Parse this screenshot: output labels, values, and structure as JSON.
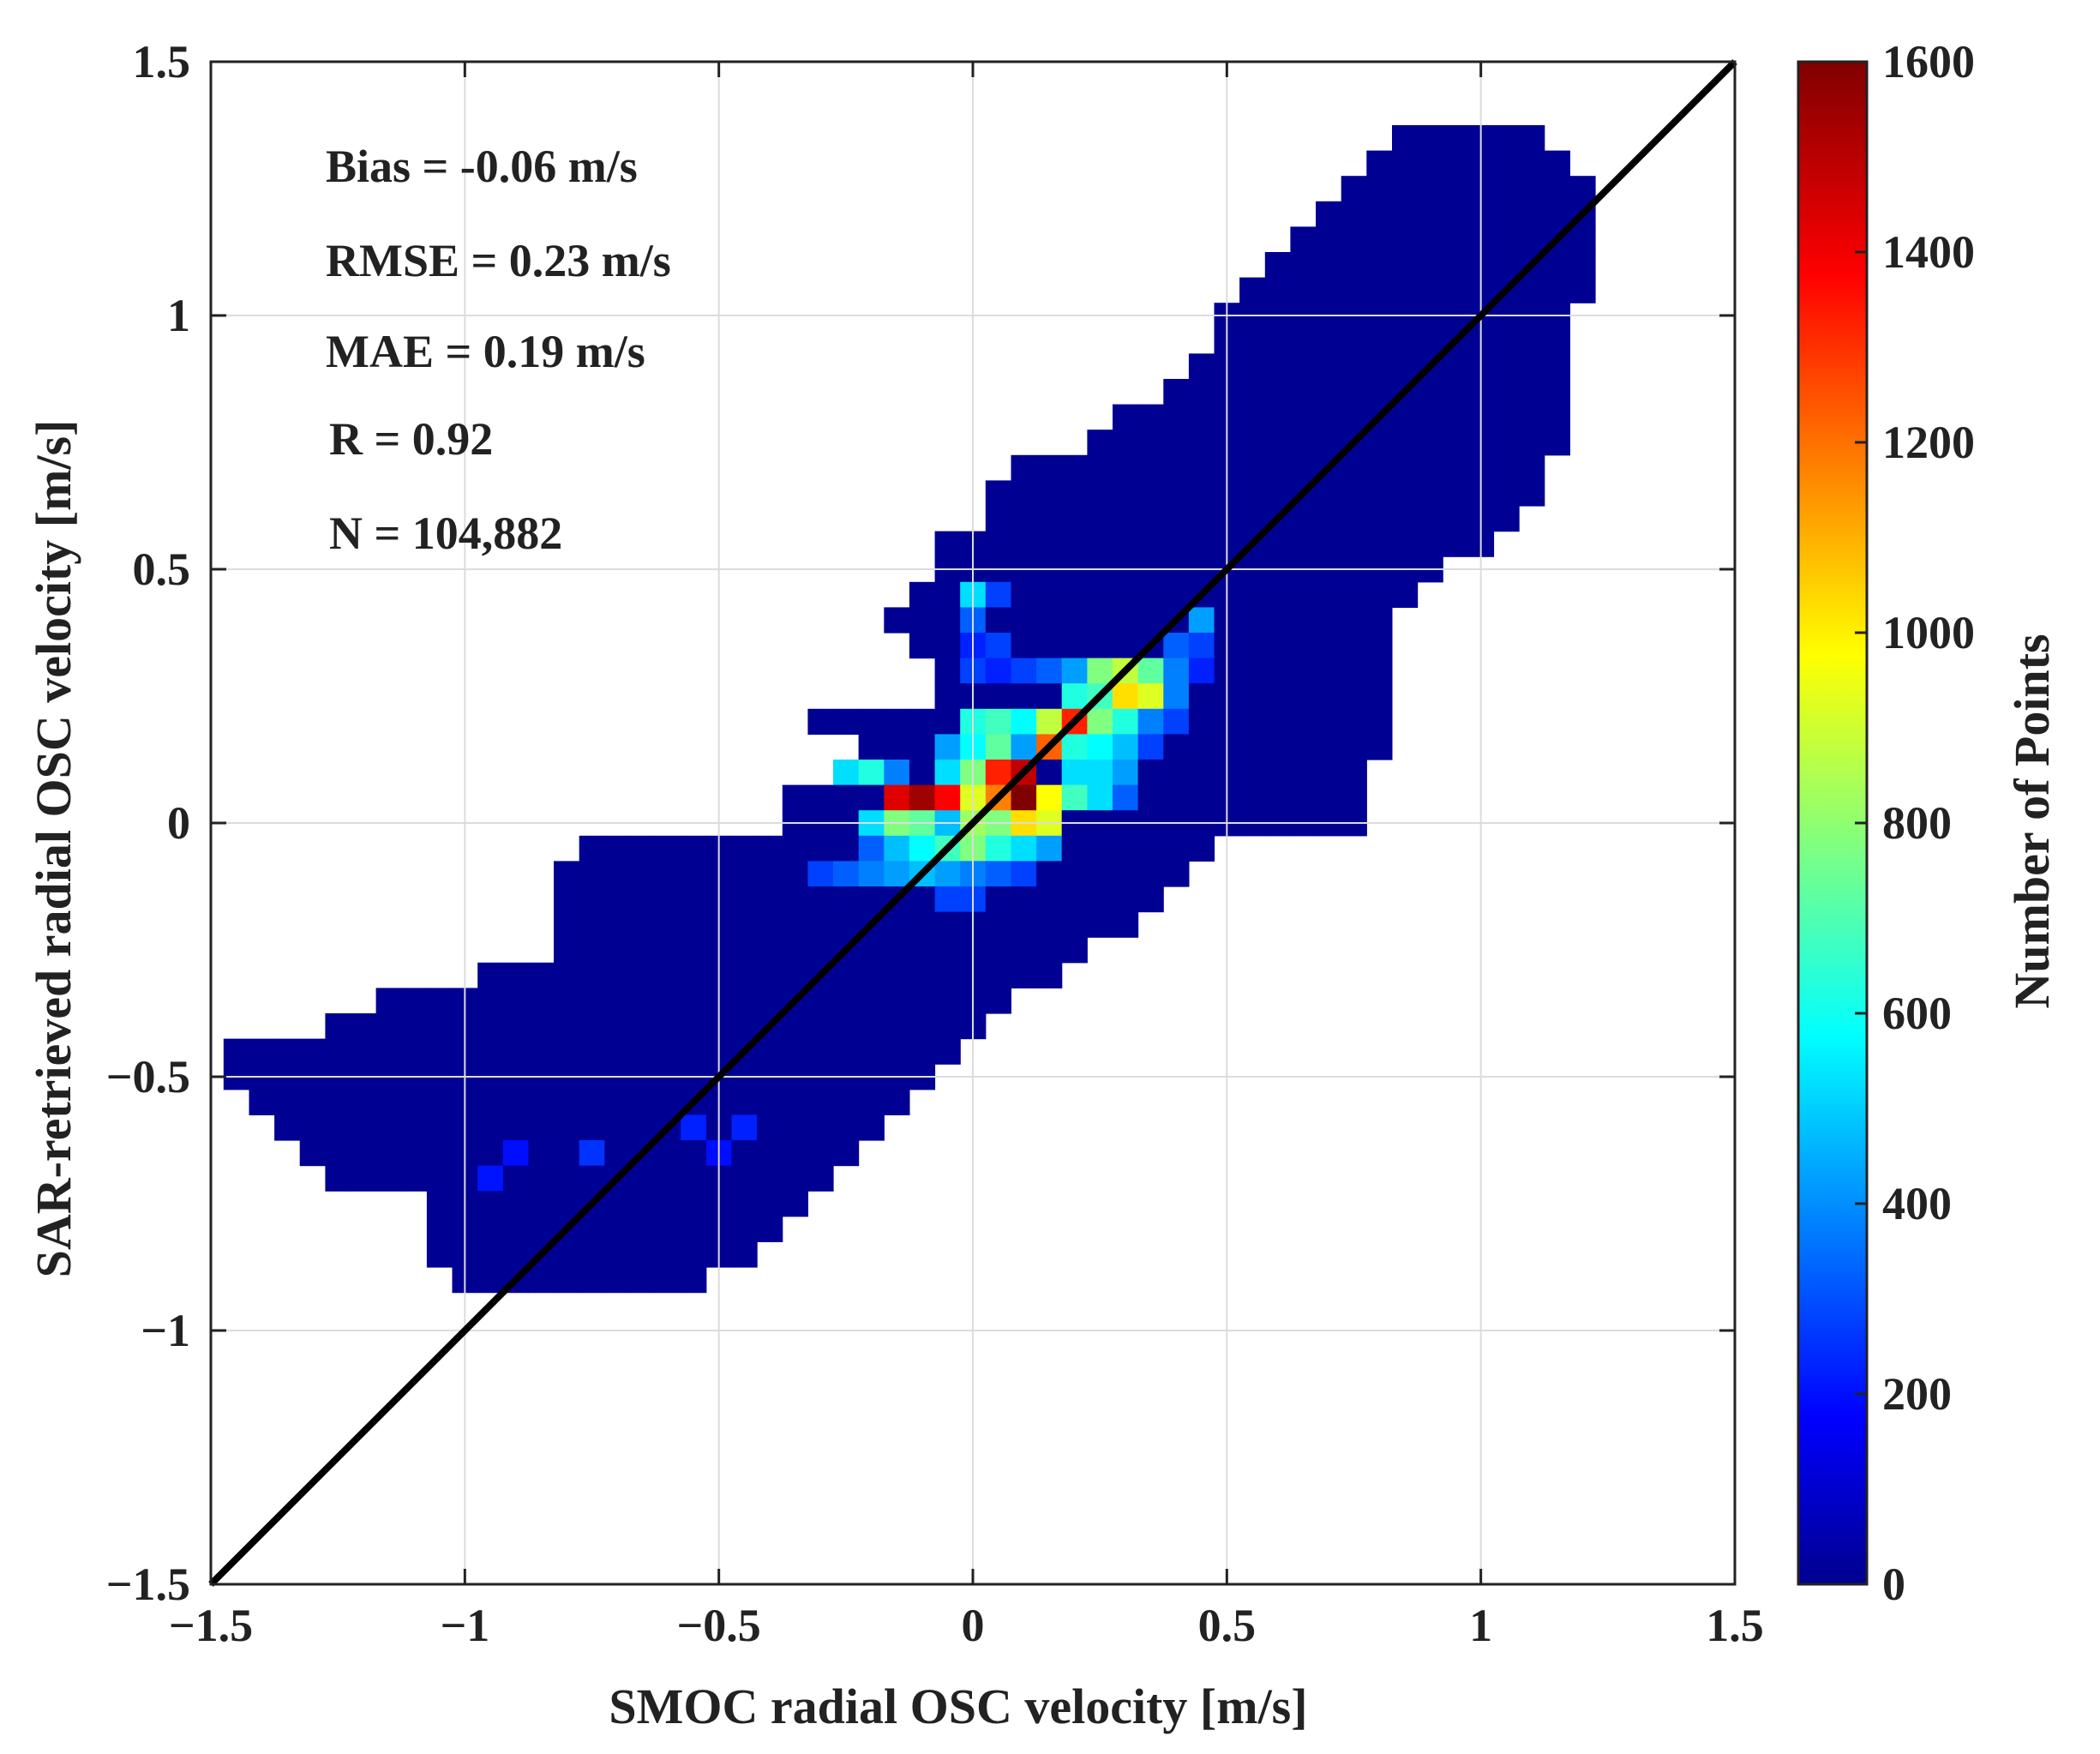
{
  "chart_data": {
    "type": "heatmap",
    "title": "",
    "xlabel": "SMOC radial OSC velocity [m/s]",
    "ylabel": "SAR-retrieved radial OSC velocity [m/s]",
    "xlim": [
      -1.5,
      1.5
    ],
    "ylim": [
      -1.5,
      1.5
    ],
    "xticks": [
      {
        "value": -1.5,
        "label": "−1.5"
      },
      {
        "value": -1,
        "label": "−1"
      },
      {
        "value": -0.5,
        "label": "−0.5"
      },
      {
        "value": 0,
        "label": "0"
      },
      {
        "value": 0.5,
        "label": "0.5"
      },
      {
        "value": 1,
        "label": "1"
      },
      {
        "value": 1.5,
        "label": "1.5"
      }
    ],
    "yticks": [
      {
        "value": -1.5,
        "label": "−1.5"
      },
      {
        "value": -1,
        "label": "−1"
      },
      {
        "value": -0.5,
        "label": "−0.5"
      },
      {
        "value": 0,
        "label": "0"
      },
      {
        "value": 0.5,
        "label": "0.5"
      },
      {
        "value": 1,
        "label": "1"
      },
      {
        "value": 1.5,
        "label": "1.5"
      }
    ],
    "grid": true,
    "bin_size": 0.05,
    "colormap": "jet",
    "colorbar": {
      "label": "Number of Points",
      "range": [
        0,
        1600
      ],
      "ticks": [
        {
          "value": 0,
          "label": "0"
        },
        {
          "value": 200,
          "label": "200"
        },
        {
          "value": 400,
          "label": "400"
        },
        {
          "value": 600,
          "label": "600"
        },
        {
          "value": 800,
          "label": "800"
        },
        {
          "value": 1000,
          "label": "1000"
        },
        {
          "value": 1200,
          "label": "1200"
        },
        {
          "value": 1400,
          "label": "1400"
        },
        {
          "value": 1600,
          "label": "1600"
        }
      ]
    },
    "reference_line": {
      "label": "1:1 line",
      "from": [
        -1.5,
        -1.5
      ],
      "to": [
        1.5,
        1.5
      ]
    },
    "annotations": [
      "Bias = -0.06 m/s",
      "RMSE = 0.23 m/s",
      "MAE = 0.19 m/s",
      "R = 0.92",
      "N = 104,882"
    ],
    "background_count": 30,
    "density_row_extents": [
      {
        "y": 1.35,
        "x_from": 0.85,
        "x_to": 1.1
      },
      {
        "y": 1.3,
        "x_from": 0.8,
        "x_to": 1.15
      },
      {
        "y": 1.25,
        "x_from": 0.75,
        "x_to": 1.2
      },
      {
        "y": 1.2,
        "x_from": 0.7,
        "x_to": 1.2
      },
      {
        "y": 1.15,
        "x_from": 0.65,
        "x_to": 1.2
      },
      {
        "y": 1.1,
        "x_from": 0.6,
        "x_to": 1.2
      },
      {
        "y": 1.05,
        "x_from": 0.55,
        "x_to": 1.2
      },
      {
        "y": 1.0,
        "x_from": 0.5,
        "x_to": 1.15
      },
      {
        "y": 0.95,
        "x_from": 0.5,
        "x_to": 1.15
      },
      {
        "y": 0.9,
        "x_from": 0.45,
        "x_to": 1.15
      },
      {
        "y": 0.85,
        "x_from": 0.4,
        "x_to": 1.15
      },
      {
        "y": 0.8,
        "x_from": 0.3,
        "x_to": 1.15
      },
      {
        "y": 0.75,
        "x_from": 0.25,
        "x_to": 1.15
      },
      {
        "y": 0.7,
        "x_from": 0.1,
        "x_to": 1.1
      },
      {
        "y": 0.65,
        "x_from": 0.05,
        "x_to": 1.1
      },
      {
        "y": 0.6,
        "x_from": 0.05,
        "x_to": 1.05
      },
      {
        "y": 0.55,
        "x_from": -0.05,
        "x_to": 1.0
      },
      {
        "y": 0.5,
        "x_from": -0.05,
        "x_to": 0.9
      },
      {
        "y": 0.45,
        "x_from": -0.1,
        "x_to": 0.85
      },
      {
        "y": 0.4,
        "x_from": -0.15,
        "x_to": 0.8
      },
      {
        "y": 0.35,
        "x_from": -0.1,
        "x_to": 0.8
      },
      {
        "y": 0.3,
        "x_from": -0.05,
        "x_to": 0.8
      },
      {
        "y": 0.25,
        "x_from": -0.05,
        "x_to": 0.8
      },
      {
        "y": 0.2,
        "x_from": -0.3,
        "x_to": 0.8
      },
      {
        "y": 0.15,
        "x_from": -0.2,
        "x_to": 0.8
      },
      {
        "y": 0.1,
        "x_from": -0.25,
        "x_to": 0.75
      },
      {
        "y": 0.05,
        "x_from": -0.35,
        "x_to": 0.75
      },
      {
        "y": 0.0,
        "x_from": -0.35,
        "x_to": 0.75
      },
      {
        "y": -0.05,
        "x_from": -0.75,
        "x_to": 0.45
      },
      {
        "y": -0.1,
        "x_from": -0.8,
        "x_to": 0.4
      },
      {
        "y": -0.15,
        "x_from": -0.8,
        "x_to": 0.35
      },
      {
        "y": -0.2,
        "x_from": -0.8,
        "x_to": 0.3
      },
      {
        "y": -0.25,
        "x_from": -0.8,
        "x_to": 0.2
      },
      {
        "y": -0.3,
        "x_from": -0.95,
        "x_to": 0.15
      },
      {
        "y": -0.35,
        "x_from": -1.15,
        "x_to": 0.05
      },
      {
        "y": -0.4,
        "x_from": -1.25,
        "x_to": 0.0
      },
      {
        "y": -0.45,
        "x_from": -1.45,
        "x_to": -0.05
      },
      {
        "y": -0.5,
        "x_from": -1.45,
        "x_to": -0.1
      },
      {
        "y": -0.55,
        "x_from": -1.4,
        "x_to": -0.15
      },
      {
        "y": -0.6,
        "x_from": -1.35,
        "x_to": -0.2
      },
      {
        "y": -0.65,
        "x_from": -1.3,
        "x_to": -0.25
      },
      {
        "y": -0.7,
        "x_from": -1.25,
        "x_to": -0.3
      },
      {
        "y": -0.75,
        "x_from": -1.05,
        "x_to": -0.35
      },
      {
        "y": -0.8,
        "x_from": -1.05,
        "x_to": -0.4
      },
      {
        "y": -0.85,
        "x_from": -1.05,
        "x_to": -0.45
      },
      {
        "y": -0.9,
        "x_from": -1.0,
        "x_to": -0.55
      }
    ],
    "density_hot_bins": [
      {
        "x": 0.1,
        "y": 0.05,
        "count": 1600
      },
      {
        "x": 0.1,
        "y": 0.1,
        "count": 1500
      },
      {
        "x": 0.05,
        "y": 0.1,
        "count": 1350
      },
      {
        "x": -0.15,
        "y": 0.05,
        "count": 1450
      },
      {
        "x": -0.1,
        "y": 0.05,
        "count": 1550
      },
      {
        "x": -0.05,
        "y": 0.05,
        "count": 1400
      },
      {
        "x": 0.15,
        "y": 0.15,
        "count": 1250
      },
      {
        "x": 0.2,
        "y": 0.2,
        "count": 1350
      },
      {
        "x": 0.15,
        "y": 0.2,
        "count": 900
      },
      {
        "x": 0.0,
        "y": 0.05,
        "count": 950
      },
      {
        "x": 0.05,
        "y": 0.05,
        "count": 1200
      },
      {
        "x": 0.15,
        "y": 0.05,
        "count": 1000
      },
      {
        "x": 0.1,
        "y": 0.0,
        "count": 1050
      },
      {
        "x": 0.15,
        "y": 0.0,
        "count": 950
      },
      {
        "x": 0.3,
        "y": 0.25,
        "count": 1050
      },
      {
        "x": 0.35,
        "y": 0.25,
        "count": 950
      },
      {
        "x": 0.3,
        "y": 0.3,
        "count": 900
      },
      {
        "x": 0.25,
        "y": 0.3,
        "count": 800
      },
      {
        "x": 0.25,
        "y": 0.25,
        "count": 700
      },
      {
        "x": 0.35,
        "y": 0.3,
        "count": 750
      },
      {
        "x": 0.2,
        "y": 0.25,
        "count": 650
      },
      {
        "x": 0.0,
        "y": 0.2,
        "count": 650
      },
      {
        "x": 0.05,
        "y": 0.2,
        "count": 700
      },
      {
        "x": 0.1,
        "y": 0.2,
        "count": 600
      },
      {
        "x": 0.05,
        "y": 0.15,
        "count": 750
      },
      {
        "x": 0.0,
        "y": 0.15,
        "count": 600
      },
      {
        "x": -0.05,
        "y": 0.15,
        "count": 450
      },
      {
        "x": 0.1,
        "y": 0.15,
        "count": 450
      },
      {
        "x": 0.2,
        "y": 0.15,
        "count": 650
      },
      {
        "x": 0.25,
        "y": 0.15,
        "count": 600
      },
      {
        "x": 0.3,
        "y": 0.15,
        "count": 500
      },
      {
        "x": 0.25,
        "y": 0.1,
        "count": 550
      },
      {
        "x": 0.2,
        "y": 0.1,
        "count": 550
      },
      {
        "x": 0.3,
        "y": 0.1,
        "count": 450
      },
      {
        "x": -0.2,
        "y": 0.1,
        "count": 650
      },
      {
        "x": -0.25,
        "y": 0.1,
        "count": 550
      },
      {
        "x": -0.15,
        "y": 0.1,
        "count": 400
      },
      {
        "x": 0.0,
        "y": 0.1,
        "count": 800
      },
      {
        "x": -0.05,
        "y": 0.1,
        "count": 550
      },
      {
        "x": -0.2,
        "y": 0.0,
        "count": 550
      },
      {
        "x": -0.15,
        "y": 0.0,
        "count": 800
      },
      {
        "x": -0.1,
        "y": 0.0,
        "count": 750
      },
      {
        "x": -0.05,
        "y": 0.0,
        "count": 500
      },
      {
        "x": 0.0,
        "y": 0.0,
        "count": 850
      },
      {
        "x": 0.05,
        "y": 0.0,
        "count": 800
      },
      {
        "x": 0.2,
        "y": 0.05,
        "count": 700
      },
      {
        "x": 0.25,
        "y": 0.05,
        "count": 550
      },
      {
        "x": 0.3,
        "y": 0.05,
        "count": 350
      },
      {
        "x": 0.0,
        "y": 0.45,
        "count": 550
      },
      {
        "x": 0.05,
        "y": 0.45,
        "count": 300
      },
      {
        "x": 0.0,
        "y": 0.4,
        "count": 350
      },
      {
        "x": 0.05,
        "y": 0.35,
        "count": 300
      },
      {
        "x": 0.0,
        "y": 0.35,
        "count": 250
      },
      {
        "x": 0.0,
        "y": 0.3,
        "count": 300
      },
      {
        "x": 0.05,
        "y": 0.3,
        "count": 250
      },
      {
        "x": 0.1,
        "y": 0.3,
        "count": 300
      },
      {
        "x": 0.15,
        "y": 0.3,
        "count": 350
      },
      {
        "x": 0.2,
        "y": 0.3,
        "count": 450
      },
      {
        "x": 0.4,
        "y": 0.3,
        "count": 400
      },
      {
        "x": 0.45,
        "y": 0.3,
        "count": 250
      },
      {
        "x": 0.4,
        "y": 0.35,
        "count": 350
      },
      {
        "x": 0.45,
        "y": 0.4,
        "count": 450
      },
      {
        "x": 0.45,
        "y": 0.35,
        "count": 300
      },
      {
        "x": 0.4,
        "y": 0.25,
        "count": 400
      },
      {
        "x": 0.35,
        "y": 0.2,
        "count": 400
      },
      {
        "x": 0.3,
        "y": 0.2,
        "count": 650
      },
      {
        "x": 0.25,
        "y": 0.2,
        "count": 800
      },
      {
        "x": 0.4,
        "y": 0.2,
        "count": 300
      },
      {
        "x": 0.35,
        "y": 0.15,
        "count": 300
      },
      {
        "x": -0.2,
        "y": -0.05,
        "count": 350
      },
      {
        "x": -0.15,
        "y": -0.05,
        "count": 500
      },
      {
        "x": -0.1,
        "y": -0.05,
        "count": 600
      },
      {
        "x": -0.05,
        "y": -0.05,
        "count": 700
      },
      {
        "x": 0.0,
        "y": -0.05,
        "count": 800
      },
      {
        "x": 0.05,
        "y": -0.05,
        "count": 650
      },
      {
        "x": 0.1,
        "y": -0.05,
        "count": 550
      },
      {
        "x": 0.15,
        "y": -0.05,
        "count": 450
      },
      {
        "x": -0.3,
        "y": -0.1,
        "count": 300
      },
      {
        "x": -0.25,
        "y": -0.1,
        "count": 350
      },
      {
        "x": -0.2,
        "y": -0.1,
        "count": 400
      },
      {
        "x": -0.15,
        "y": -0.1,
        "count": 450
      },
      {
        "x": -0.1,
        "y": -0.1,
        "count": 500
      },
      {
        "x": -0.05,
        "y": -0.1,
        "count": 450
      },
      {
        "x": 0.0,
        "y": -0.1,
        "count": 400
      },
      {
        "x": 0.05,
        "y": -0.1,
        "count": 350
      },
      {
        "x": 0.1,
        "y": -0.1,
        "count": 300
      },
      {
        "x": -0.05,
        "y": -0.15,
        "count": 300
      },
      {
        "x": 0.0,
        "y": -0.15,
        "count": 300
      },
      {
        "x": -0.75,
        "y": -0.65,
        "count": 280
      },
      {
        "x": -0.55,
        "y": -0.6,
        "count": 250
      },
      {
        "x": -0.45,
        "y": -0.6,
        "count": 250
      },
      {
        "x": -0.9,
        "y": -0.65,
        "count": 220
      },
      {
        "x": -0.95,
        "y": -0.7,
        "count": 230
      },
      {
        "x": -0.5,
        "y": -0.65,
        "count": 220
      }
    ]
  }
}
